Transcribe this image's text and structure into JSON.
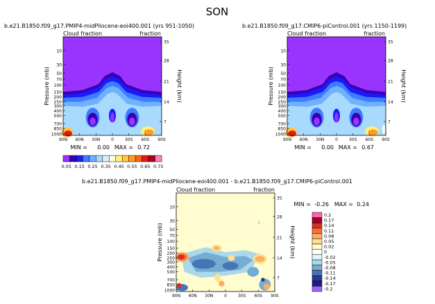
{
  "figure": {
    "title": "SON"
  },
  "palette": {
    "cb_top": [
      "#9b30ff",
      "#3a00b0",
      "#1a1aff",
      "#3e7dff",
      "#6fb0ff",
      "#a8daff",
      "#d5efff",
      "#ffffe0",
      "#fff27a",
      "#ffc840",
      "#ff9a22",
      "#ff6414",
      "#e31a1c",
      "#b30019",
      "#ff82b4"
    ],
    "cb_diff": [
      "#ff66aa",
      "#a50026",
      "#d73027",
      "#f46d43",
      "#fdae61",
      "#fee090",
      "#ffffcc",
      "#ffffff",
      "#e0f3f8",
      "#abd9e9",
      "#74add1",
      "#4575b4",
      "#313695",
      "#1a1a8c",
      "#9966ff"
    ],
    "bg_main": "#9933ff",
    "bg_diff": "#fffccf"
  },
  "chart_data": [
    {
      "type": "heatmap",
      "title": "b.e21.B1850.f09_g17.PMIP4-midPliocene-eoi400.001 (yrs 951-1050)",
      "left_label": "Cloud fraction",
      "right_label": "fraction",
      "xlabel": "",
      "ylabel": "Pressure (mb)",
      "y2label": "Height (km)",
      "xticks": [
        "90N",
        "60N",
        "30N",
        "0",
        "30S",
        "60S",
        "90S"
      ],
      "yticks": [
        "10",
        "30",
        "50",
        "70",
        "100",
        "150",
        "200",
        "250",
        "300",
        "400",
        "500",
        "700",
        "850",
        "1000"
      ],
      "y2ticks": [
        "35",
        "28",
        "21",
        "14",
        "7"
      ],
      "min_text": "MIN =",
      "min_value": "0.00",
      "max_text": "MAX =",
      "max_value": "0.72"
    },
    {
      "type": "heatmap",
      "title": "b.e21.B1850.f09_g17.CMIP6-piControl.001 (yrs 1150-1199)",
      "left_label": "Cloud fraction",
      "right_label": "fraction",
      "xlabel": "",
      "ylabel": "Pressure (mb)",
      "y2label": "Height (km)",
      "xticks": [
        "90N",
        "60N",
        "30N",
        "0",
        "30S",
        "60S",
        "90S"
      ],
      "yticks": [
        "10",
        "30",
        "50",
        "70",
        "100",
        "150",
        "200",
        "250",
        "300",
        "400",
        "500",
        "700",
        "850",
        "1000"
      ],
      "y2ticks": [
        "35",
        "28",
        "21",
        "14",
        "7"
      ],
      "min_text": "MIN =",
      "min_value": "0.00",
      "max_text": "MAX =",
      "max_value": "0.67"
    },
    {
      "type": "heatmap",
      "title": "b.e21.B1850.f09_g17.PMIP4-midPliocene-eoi400.001 - b.e21.B1850.f09_g17.CMIP6-piControl.001",
      "left_label": "Cloud fraction",
      "right_label": "fraction",
      "xlabel": "",
      "ylabel": "Pressure (mb)",
      "y2label": "Height (km)",
      "xticks": [
        "90N",
        "60N",
        "30N",
        "0",
        "30S",
        "60S",
        "90S"
      ],
      "yticks": [
        "10",
        "30",
        "50",
        "70",
        "100",
        "150",
        "200",
        "250",
        "300",
        "400",
        "500",
        "700",
        "850",
        "1000"
      ],
      "y2ticks": [
        "35",
        "28",
        "21",
        "14",
        "7"
      ],
      "min_text": "MIN =",
      "min_value": "-0.26",
      "max_text": "MAX =",
      "max_value": "0.24"
    }
  ],
  "colorbar_main": {
    "labels": [
      "0.05",
      "0.15",
      "0.25",
      "0.35",
      "0.45",
      "0.55",
      "0.65",
      "0.75"
    ]
  },
  "colorbar_diff": {
    "labels": [
      "0.2",
      "0.17",
      "0.14",
      "0.11",
      "0.08",
      "0.05",
      "0.02",
      "0",
      "-0.02",
      "-0.05",
      "-0.08",
      "-0.11",
      "-0.14",
      "-0.17",
      "-0.2"
    ]
  }
}
